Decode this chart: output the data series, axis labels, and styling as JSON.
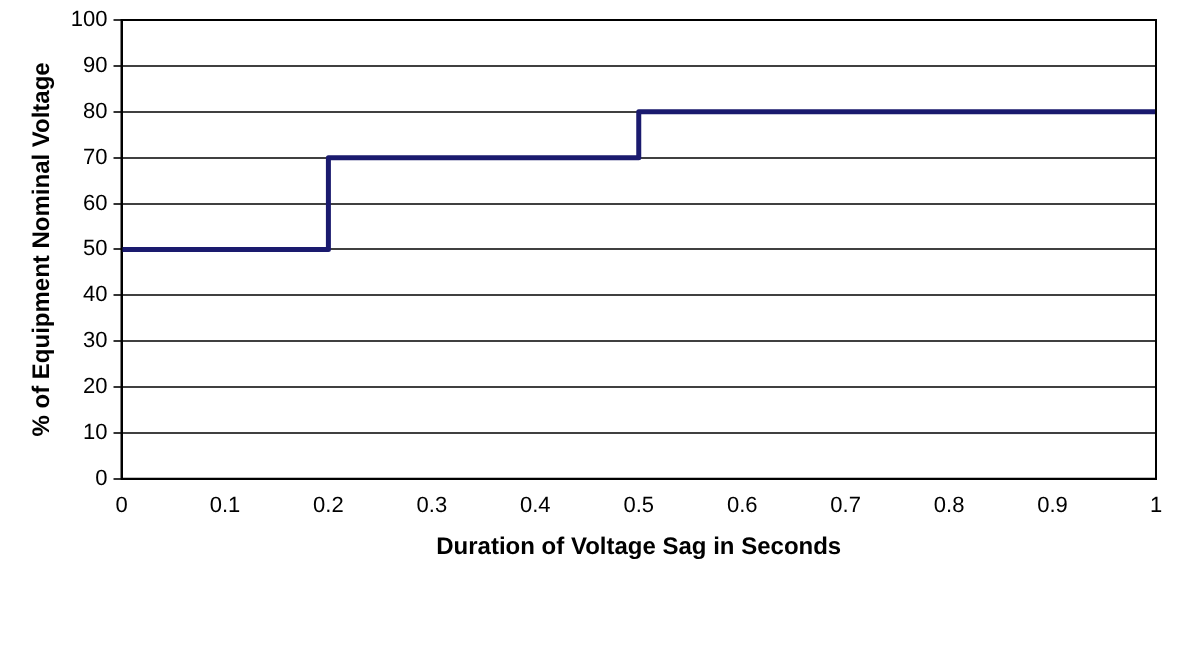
{
  "chart_data": {
    "type": "step",
    "xlabel": "Duration of Voltage Sag in Seconds",
    "ylabel": "% of Equipment Nominal Voltage",
    "x": [
      0,
      0.2,
      0.5,
      1
    ],
    "series": [
      {
        "color": "#1a1a6e",
        "values": [
          50,
          70,
          80,
          80
        ]
      }
    ],
    "xlim": [
      0,
      1
    ],
    "xticks": [
      0,
      0.1,
      0.2,
      0.3,
      0.4,
      0.5,
      0.6,
      0.7,
      0.8,
      0.9,
      1
    ],
    "ylim": [
      0,
      100
    ],
    "yticks": [
      0,
      10,
      20,
      30,
      40,
      50,
      60,
      70,
      80,
      90,
      100
    ],
    "grid": "y",
    "legend": false
  }
}
